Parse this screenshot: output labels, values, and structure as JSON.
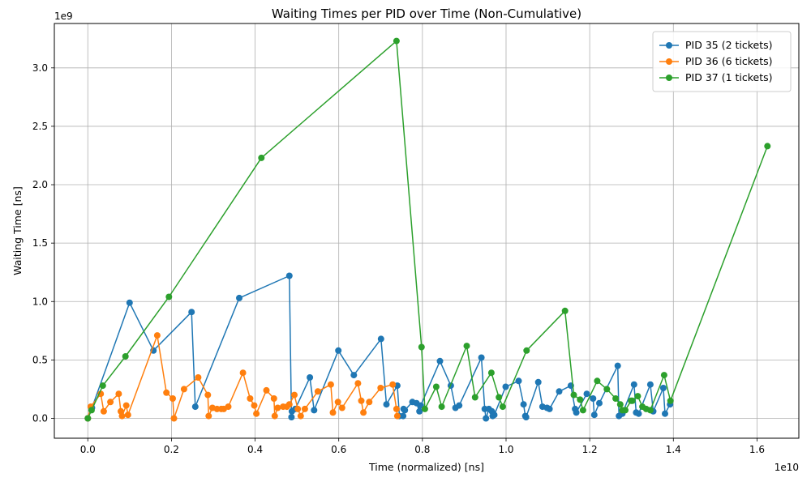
{
  "chart_data": {
    "type": "line",
    "title": "Waiting Times per PID over Time (Non-Cumulative)",
    "xlabel": "Time (normalized) [ns]",
    "ylabel": "Waiting Time [ns]",
    "x_scale_label": "1e10",
    "y_scale_label": "1e9",
    "x_scale_factor": 10000000000,
    "y_scale_factor": 1000000000,
    "xlim": [
      -800000000,
      17000000000
    ],
    "ylim": [
      -170000000,
      3380000000
    ],
    "xticks": [
      0,
      2000000000,
      4000000000,
      6000000000,
      8000000000,
      10000000000,
      12000000000,
      14000000000,
      16000000000
    ],
    "xtick_labels": [
      "0.0",
      "0.2",
      "0.4",
      "0.6",
      "0.8",
      "1.0",
      "1.2",
      "1.4",
      "1.6"
    ],
    "yticks": [
      0,
      500000000,
      1000000000,
      1500000000,
      2000000000,
      2500000000,
      3000000000
    ],
    "ytick_labels": [
      "0.0",
      "0.5",
      "1.0",
      "1.5",
      "2.0",
      "2.5",
      "3.0"
    ],
    "grid": true,
    "legend_position": "top-right",
    "series": [
      {
        "name": "PID 35 (2 tickets)",
        "color": "#1f77b4",
        "points": [
          [
            0,
            0
          ],
          [
            100000000,
            90000000
          ],
          [
            1000000000,
            990000000
          ],
          [
            1570000000,
            580000000
          ],
          [
            2480000000,
            910000000
          ],
          [
            2570000000,
            100000000
          ],
          [
            3620000000,
            1030000000
          ],
          [
            4820000000,
            1220000000
          ],
          [
            4870000000,
            10000000
          ],
          [
            4880000000,
            60000000
          ],
          [
            4960000000,
            80000000
          ],
          [
            5310000000,
            350000000
          ],
          [
            5410000000,
            70000000
          ],
          [
            5990000000,
            580000000
          ],
          [
            6360000000,
            370000000
          ],
          [
            7010000000,
            680000000
          ],
          [
            7140000000,
            120000000
          ],
          [
            7400000000,
            280000000
          ],
          [
            7450000000,
            20000000
          ],
          [
            7540000000,
            20000000
          ],
          [
            7550000000,
            80000000
          ],
          [
            7580000000,
            70000000
          ],
          [
            7760000000,
            140000000
          ],
          [
            7860000000,
            130000000
          ],
          [
            7930000000,
            60000000
          ],
          [
            7960000000,
            110000000
          ],
          [
            8420000000,
            490000000
          ],
          [
            8680000000,
            280000000
          ],
          [
            8790000000,
            90000000
          ],
          [
            8880000000,
            110000000
          ],
          [
            9410000000,
            520000000
          ],
          [
            9490000000,
            80000000
          ],
          [
            9520000000,
            0
          ],
          [
            9590000000,
            80000000
          ],
          [
            9660000000,
            60000000
          ],
          [
            9680000000,
            20000000
          ],
          [
            9720000000,
            30000000
          ],
          [
            9990000000,
            270000000
          ],
          [
            10300000000,
            320000000
          ],
          [
            10420000000,
            120000000
          ],
          [
            10460000000,
            20000000
          ],
          [
            10480000000,
            10000000
          ],
          [
            10770000000,
            310000000
          ],
          [
            10870000000,
            100000000
          ],
          [
            10980000000,
            90000000
          ],
          [
            11040000000,
            80000000
          ],
          [
            11270000000,
            230000000
          ],
          [
            11550000000,
            280000000
          ],
          [
            11650000000,
            80000000
          ],
          [
            11680000000,
            50000000
          ],
          [
            11930000000,
            210000000
          ],
          [
            12080000000,
            170000000
          ],
          [
            12110000000,
            30000000
          ],
          [
            12230000000,
            130000000
          ],
          [
            12670000000,
            450000000
          ],
          [
            12700000000,
            20000000
          ],
          [
            12780000000,
            40000000
          ],
          [
            13060000000,
            290000000
          ],
          [
            13110000000,
            50000000
          ],
          [
            13170000000,
            40000000
          ],
          [
            13450000000,
            290000000
          ],
          [
            13520000000,
            60000000
          ],
          [
            13760000000,
            260000000
          ],
          [
            13800000000,
            40000000
          ],
          [
            13920000000,
            120000000
          ]
        ]
      },
      {
        "name": "PID 36 (6 tickets)",
        "color": "#ff7f0e",
        "points": [
          [
            0,
            0
          ],
          [
            70000000,
            100000000
          ],
          [
            310000000,
            210000000
          ],
          [
            380000000,
            60000000
          ],
          [
            540000000,
            140000000
          ],
          [
            740000000,
            210000000
          ],
          [
            790000000,
            60000000
          ],
          [
            820000000,
            20000000
          ],
          [
            920000000,
            110000000
          ],
          [
            960000000,
            30000000
          ],
          [
            1660000000,
            710000000
          ],
          [
            1880000000,
            220000000
          ],
          [
            2030000000,
            170000000
          ],
          [
            2060000000,
            0
          ],
          [
            2300000000,
            250000000
          ],
          [
            2640000000,
            350000000
          ],
          [
            2870000000,
            200000000
          ],
          [
            2890000000,
            20000000
          ],
          [
            2980000000,
            90000000
          ],
          [
            3090000000,
            80000000
          ],
          [
            3190000000,
            80000000
          ],
          [
            3250000000,
            80000000
          ],
          [
            3360000000,
            100000000
          ],
          [
            3710000000,
            390000000
          ],
          [
            3880000000,
            170000000
          ],
          [
            3980000000,
            110000000
          ],
          [
            4030000000,
            40000000
          ],
          [
            4270000000,
            240000000
          ],
          [
            4450000000,
            170000000
          ],
          [
            4470000000,
            20000000
          ],
          [
            4540000000,
            90000000
          ],
          [
            4670000000,
            100000000
          ],
          [
            4760000000,
            100000000
          ],
          [
            4820000000,
            120000000
          ],
          [
            4940000000,
            200000000
          ],
          [
            5020000000,
            80000000
          ],
          [
            5090000000,
            20000000
          ],
          [
            5190000000,
            80000000
          ],
          [
            5500000000,
            230000000
          ],
          [
            5810000000,
            290000000
          ],
          [
            5860000000,
            50000000
          ],
          [
            5980000000,
            140000000
          ],
          [
            6080000000,
            90000000
          ],
          [
            6460000000,
            300000000
          ],
          [
            6540000000,
            150000000
          ],
          [
            6590000000,
            50000000
          ],
          [
            6730000000,
            140000000
          ],
          [
            7000000000,
            260000000
          ],
          [
            7290000000,
            290000000
          ],
          [
            7380000000,
            80000000
          ],
          [
            7400000000,
            20000000
          ]
        ]
      },
      {
        "name": "PID 37 (1 tickets)",
        "color": "#2ca02c",
        "points": [
          [
            0,
            0
          ],
          [
            90000000,
            70000000
          ],
          [
            360000000,
            280000000
          ],
          [
            900000000,
            530000000
          ],
          [
            1940000000,
            1040000000
          ],
          [
            4150000000,
            2230000000
          ],
          [
            7380000000,
            3230000000
          ],
          [
            7980000000,
            610000000
          ],
          [
            8060000000,
            80000000
          ],
          [
            8330000000,
            270000000
          ],
          [
            8460000000,
            100000000
          ],
          [
            9060000000,
            620000000
          ],
          [
            9260000000,
            180000000
          ],
          [
            9650000000,
            390000000
          ],
          [
            9830000000,
            180000000
          ],
          [
            9920000000,
            100000000
          ],
          [
            10490000000,
            580000000
          ],
          [
            11410000000,
            920000000
          ],
          [
            11620000000,
            200000000
          ],
          [
            11770000000,
            160000000
          ],
          [
            11840000000,
            70000000
          ],
          [
            12180000000,
            320000000
          ],
          [
            12410000000,
            250000000
          ],
          [
            12620000000,
            170000000
          ],
          [
            12730000000,
            120000000
          ],
          [
            12780000000,
            70000000
          ],
          [
            12850000000,
            70000000
          ],
          [
            12990000000,
            150000000
          ],
          [
            13020000000,
            150000000
          ],
          [
            13150000000,
            190000000
          ],
          [
            13260000000,
            100000000
          ],
          [
            13350000000,
            80000000
          ],
          [
            13450000000,
            70000000
          ],
          [
            13780000000,
            370000000
          ],
          [
            13930000000,
            150000000
          ],
          [
            16250000000,
            2330000000
          ]
        ]
      }
    ]
  }
}
